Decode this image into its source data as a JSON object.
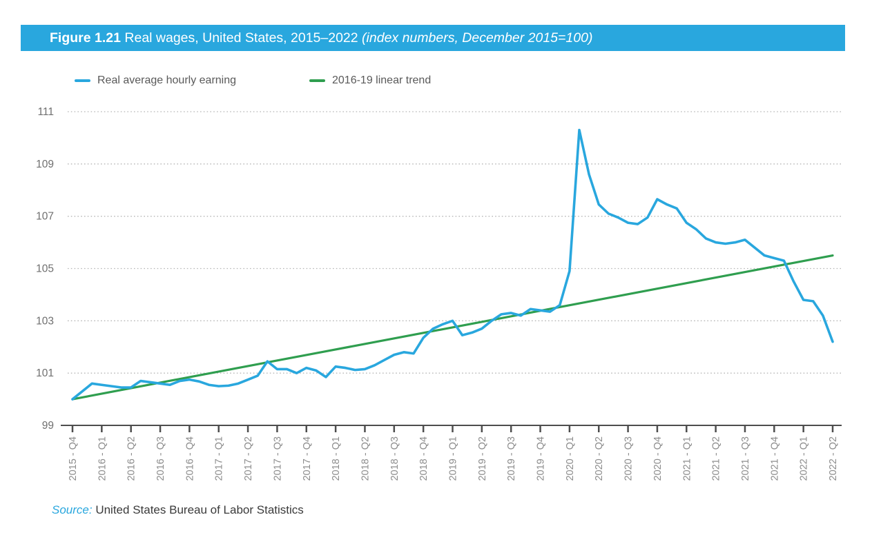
{
  "header": {
    "title_bold": "Figure 1.21",
    "title_regular": "Real wages, United States, 2015–2022",
    "title_italic": "(index numbers, December 2015=100)"
  },
  "legend": [
    {
      "label": "Real average hourly earning",
      "color": "#29a7de"
    },
    {
      "label": "2016-19 linear trend",
      "color": "#2f9e4f"
    }
  ],
  "source": {
    "prefix": "Source:",
    "text": "United States Bureau of Labor Statistics"
  },
  "colors": {
    "accent_blue": "#29a7de",
    "green": "#2f9e4f",
    "grid": "#b5b5b5",
    "axis": "#4d4d4d",
    "text_gray": "#595959",
    "ytick_gray": "#6f6f6f",
    "xtick_gray": "#8c8c8c",
    "source_text": "#3a3a3a"
  },
  "chart_data": {
    "type": "line",
    "title": "Real wages, United States, 2015–2022 (index numbers, December 2015=100)",
    "xlabel": "",
    "ylabel": "",
    "x_unit": "month",
    "x_start": "2015-12",
    "x_end": "2022-06",
    "ylim": [
      99,
      111
    ],
    "y_ticks": [
      99,
      101,
      103,
      105,
      107,
      109,
      111
    ],
    "grid": "horizontal-dotted",
    "legend_position": "top-left",
    "x_tick_labels": [
      "2015 - Q4",
      "2016 - Q1",
      "2016 - Q2",
      "2016 - Q3",
      "2016 - Q4",
      "2017 - Q1",
      "2017 - Q2",
      "2017 - Q3",
      "2017 - Q4",
      "2018 - Q1",
      "2018 - Q2",
      "2018 - Q3",
      "2018 - Q4",
      "2019 - Q1",
      "2019 - Q2",
      "2019 - Q3",
      "2019 - Q4",
      "2020 - Q1",
      "2020 - Q2",
      "2020 - Q3",
      "2020 - Q4",
      "2021 - Q1",
      "2021 - Q2",
      "2021 - Q3",
      "2021 - Q4",
      "2022 - Q1",
      "2022 - Q2"
    ],
    "series": [
      {
        "name": "Real average hourly earning",
        "color": "#29a7de",
        "values": [
          100.0,
          100.3,
          100.6,
          100.55,
          100.5,
          100.45,
          100.45,
          100.7,
          100.65,
          100.6,
          100.55,
          100.7,
          100.75,
          100.68,
          100.55,
          100.5,
          100.52,
          100.6,
          100.75,
          100.9,
          101.45,
          101.15,
          101.15,
          101.0,
          101.2,
          101.1,
          100.85,
          101.25,
          101.2,
          101.12,
          101.15,
          101.3,
          101.5,
          101.7,
          101.8,
          101.75,
          102.35,
          102.7,
          102.87,
          103.0,
          102.45,
          102.55,
          102.7,
          103.0,
          103.25,
          103.3,
          103.2,
          103.45,
          103.4,
          103.35,
          103.6,
          104.9,
          110.3,
          108.6,
          107.45,
          107.1,
          106.95,
          106.75,
          106.7,
          106.95,
          107.65,
          107.45,
          107.3,
          106.75,
          106.5,
          106.15,
          106.0,
          105.95,
          106.0,
          106.1,
          105.8,
          105.5,
          105.4,
          105.3,
          104.5,
          103.8,
          103.75,
          103.2,
          102.2
        ]
      },
      {
        "name": "2016-19 linear trend",
        "color": "#2f9e4f",
        "endpoints": [
          100.0,
          105.5
        ]
      }
    ]
  }
}
